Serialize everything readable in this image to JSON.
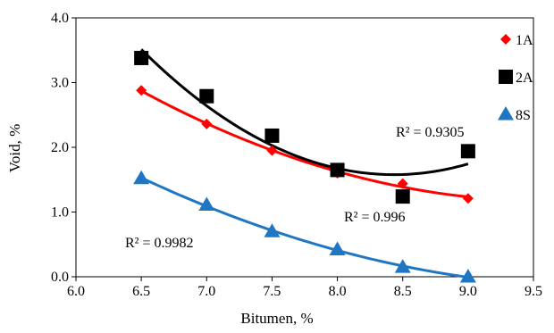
{
  "chart_data": {
    "type": "scatter",
    "title": "",
    "xlabel": "Bitumen, %",
    "ylabel": "Void, %",
    "xlim": [
      6.0,
      9.5
    ],
    "ylim": [
      0.0,
      4.0
    ],
    "x_ticks": [
      "6.0",
      "6.5",
      "7.0",
      "7.5",
      "8.0",
      "8.5",
      "9.0",
      "9.5"
    ],
    "y_ticks": [
      "0.0",
      "1.0",
      "2.0",
      "3.0",
      "4.0"
    ],
    "grid": false,
    "legend_position": "top-right",
    "series": [
      {
        "name": "1A",
        "marker": "diamond",
        "color": "#ff0000",
        "x": [
          6.5,
          7.0,
          7.5,
          8.0,
          8.5,
          9.0
        ],
        "y": [
          2.88,
          2.36,
          1.95,
          1.6,
          1.44,
          1.21
        ],
        "trendline": {
          "type": "poly2",
          "r2_label": "R² = 0.996"
        }
      },
      {
        "name": "2A",
        "marker": "square",
        "color": "#000000",
        "x": [
          6.5,
          7.0,
          7.5,
          8.0,
          8.5,
          9.0
        ],
        "y": [
          3.38,
          2.79,
          2.18,
          1.65,
          1.24,
          1.94
        ],
        "trendline": {
          "type": "poly2",
          "r2_label": "R² = 0.9305"
        }
      },
      {
        "name": "8S",
        "marker": "triangle",
        "color": "#1f77c4",
        "x": [
          6.5,
          7.0,
          7.5,
          8.0,
          8.5,
          9.0
        ],
        "y": [
          1.52,
          1.11,
          0.7,
          0.42,
          0.15,
          0.0
        ],
        "trendline": {
          "type": "poly2",
          "r2_label": "R² = 0.9982"
        }
      }
    ]
  }
}
